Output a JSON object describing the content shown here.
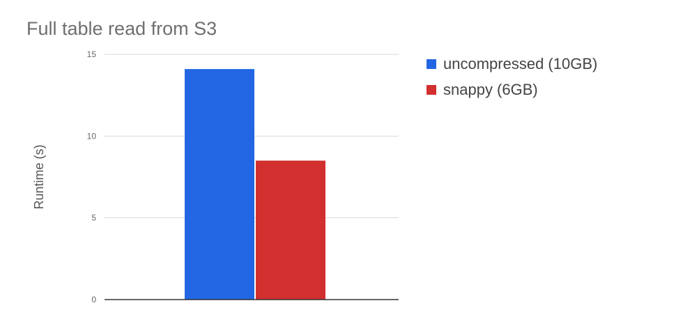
{
  "chart_data": {
    "type": "bar",
    "title": "Full table read from S3",
    "xlabel": "",
    "ylabel": "Runtime (s)",
    "categories": [
      ""
    ],
    "series": [
      {
        "name": "uncompressed (10GB)",
        "values": [
          14.1
        ],
        "color": "#2266e3"
      },
      {
        "name": "snappy (6GB)",
        "values": [
          8.5
        ],
        "color": "#d22f2f"
      }
    ],
    "ylim": [
      0,
      15
    ],
    "yticks": [
      0,
      5,
      10,
      15
    ],
    "grid": true,
    "legend_position": "right"
  }
}
